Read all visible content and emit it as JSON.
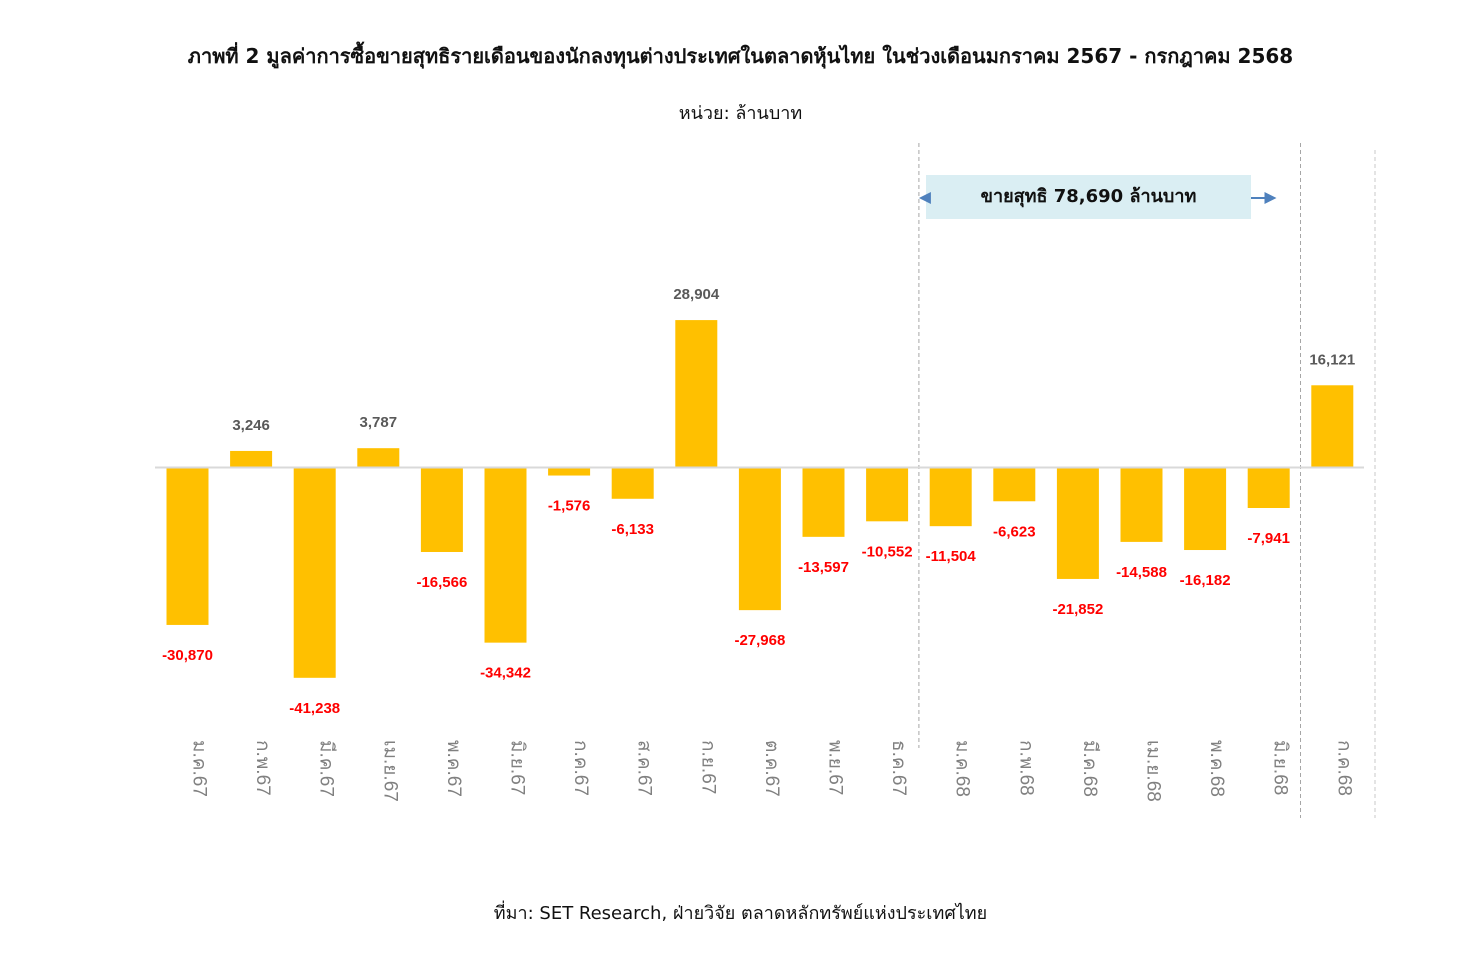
{
  "chart_data": {
    "type": "bar",
    "title": "ภาพที่ 2 มูลค่าการซื้อขายสุทธิรายเดือนของนักลงทุนต่างประเทศในตลาดหุ้นไทย ในช่วงเดือนมกราคม 2567 - กรกฎาคม 2568",
    "subtitle": "หน่วย: ล้านบาท",
    "source": "ที่มา: SET Research, ฝ่ายวิจัย ตลาดหลักทรัพย์แห่งประเทศไทย",
    "categories": [
      "ม.ค.67",
      "ก.พ.67",
      "มี.ค.67",
      "เม.ย.67",
      "พ.ค.67",
      "มิ.ย.67",
      "ก.ค.67",
      "ส.ค.67",
      "ก.ย.67",
      "ต.ค.67",
      "พ.ย.67",
      "ธ.ค.67",
      "ม.ค.68",
      "ก.พ.68",
      "มี.ค.68",
      "เม.ย.68",
      "พ.ค.68",
      "มิ.ย.68",
      "ก.ค.68"
    ],
    "values": [
      -30870,
      3246,
      -41238,
      3787,
      -16566,
      -34342,
      -1576,
      -6133,
      28904,
      -27968,
      -13597,
      -10552,
      -11504,
      -6623,
      -21852,
      -14588,
      -16182,
      -7941,
      16121
    ],
    "data_labels": [
      "-30,870",
      "3,246",
      "-41,238",
      "3,787",
      "-16,566",
      "-34,342",
      "-1,576",
      "-6,133",
      "28,904",
      "-27,968",
      "-13,597",
      "-10,552",
      "-11,504",
      "-6,623",
      "-21,852",
      "-14,588",
      "-16,182",
      "-7,941",
      "16,121"
    ],
    "annotation": {
      "text": "ขายสุทธิ 78,690 ล้านบาท",
      "range_from": "ม.ค.68",
      "range_to": "มิ.ย.68"
    },
    "colors": {
      "bar": "#FFC000",
      "positive_label": "#595959",
      "negative_label": "#FF0000",
      "category_label": "#808080",
      "annotation_box": "#DAEEF3",
      "annotation_arrow": "#4F81BD",
      "zero_line": "#D9D9D9",
      "divider": "#A6A6A6"
    },
    "grid": false,
    "legend": "none"
  }
}
